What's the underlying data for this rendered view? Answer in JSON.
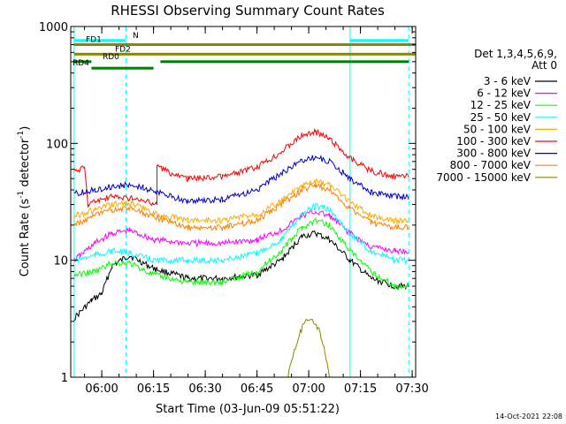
{
  "chart_data": {
    "type": "line",
    "title": "RHESSI Observing Summary Count Rates",
    "xlabel": "Start Time (03-Jun-09 05:51:22)",
    "ylabel_parts": [
      "Count Rate (s",
      "-1",
      " detector",
      "-1",
      ")"
    ],
    "ylabel": "Count Rate (s^-1 detector^-1)",
    "yscale": "log",
    "ylim": [
      1,
      1000
    ],
    "xlim": [
      "05:51",
      "07:31"
    ],
    "x_ticks": [
      "06:00",
      "06:15",
      "06:30",
      "06:45",
      "07:00",
      "07:15",
      "07:30"
    ],
    "y_ticks": [
      "1",
      "10",
      "100",
      "1000"
    ],
    "footer_date": "14-Oct-2021 22:08",
    "legend_title_line1": "Det 1,3,4,5,6,9,",
    "legend_title_line2": "Att 0",
    "series": [
      {
        "name": "3 - 6 keV",
        "color": "#000000",
        "points": [
          [
            "05:52",
            3.2
          ],
          [
            "05:57",
            4.5
          ],
          [
            "06:00",
            5.2
          ],
          [
            "06:03",
            9
          ],
          [
            "06:08",
            11
          ],
          [
            "06:15",
            8.5
          ],
          [
            "06:25",
            7
          ],
          [
            "06:35",
            7
          ],
          [
            "06:45",
            7.5
          ],
          [
            "06:52",
            10
          ],
          [
            "06:58",
            16
          ],
          [
            "07:02",
            17
          ],
          [
            "07:06",
            15
          ],
          [
            "07:12",
            10
          ],
          [
            "07:18",
            7
          ],
          [
            "07:25",
            6
          ],
          [
            "07:29",
            6
          ]
        ]
      },
      {
        "name": "6 - 12 keV",
        "color": "#ff00ff",
        "points": [
          [
            "05:52",
            10
          ],
          [
            "05:58",
            14
          ],
          [
            "06:03",
            17
          ],
          [
            "06:08",
            18
          ],
          [
            "06:15",
            15
          ],
          [
            "06:25",
            14
          ],
          [
            "06:35",
            14
          ],
          [
            "06:45",
            15
          ],
          [
            "06:52",
            18
          ],
          [
            "06:58",
            24
          ],
          [
            "07:02",
            26
          ],
          [
            "07:06",
            24
          ],
          [
            "07:12",
            17
          ],
          [
            "07:18",
            13
          ],
          [
            "07:25",
            12
          ],
          [
            "07:29",
            12
          ]
        ]
      },
      {
        "name": "12 - 25 keV",
        "color": "#00ff00",
        "points": [
          [
            "05:52",
            7.5
          ],
          [
            "05:58",
            8
          ],
          [
            "06:03",
            9.5
          ],
          [
            "06:08",
            9.5
          ],
          [
            "06:15",
            7.5
          ],
          [
            "06:25",
            6.5
          ],
          [
            "06:35",
            6.5
          ],
          [
            "06:45",
            8
          ],
          [
            "06:52",
            12
          ],
          [
            "06:58",
            19
          ],
          [
            "07:02",
            22
          ],
          [
            "07:06",
            20
          ],
          [
            "07:12",
            12
          ],
          [
            "07:18",
            8
          ],
          [
            "07:25",
            6
          ],
          [
            "07:29",
            6
          ]
        ]
      },
      {
        "name": "25 - 50 keV",
        "color": "#00ffff",
        "points": [
          [
            "05:52",
            10
          ],
          [
            "05:58",
            11
          ],
          [
            "06:03",
            12
          ],
          [
            "06:08",
            11.5
          ],
          [
            "06:15",
            10
          ],
          [
            "06:25",
            10
          ],
          [
            "06:35",
            10
          ],
          [
            "06:45",
            11.5
          ],
          [
            "06:52",
            15
          ],
          [
            "06:58",
            25
          ],
          [
            "07:02",
            29
          ],
          [
            "07:06",
            27
          ],
          [
            "07:12",
            17
          ],
          [
            "07:18",
            12
          ],
          [
            "07:25",
            10
          ],
          [
            "07:29",
            10
          ]
        ]
      },
      {
        "name": "50 - 100 keV",
        "color": "#ffaa00",
        "points": [
          [
            "05:52",
            24
          ],
          [
            "05:58",
            27
          ],
          [
            "06:03",
            30
          ],
          [
            "06:08",
            31
          ],
          [
            "06:12",
            28
          ],
          [
            "06:15",
            25
          ],
          [
            "06:25",
            22
          ],
          [
            "06:35",
            22
          ],
          [
            "06:45",
            25
          ],
          [
            "06:52",
            32
          ],
          [
            "06:58",
            43
          ],
          [
            "07:02",
            47
          ],
          [
            "07:06",
            44
          ],
          [
            "07:12",
            32
          ],
          [
            "07:18",
            24
          ],
          [
            "07:25",
            22
          ],
          [
            "07:29",
            22
          ]
        ]
      },
      {
        "name": "100 - 300 keV",
        "color": "#ff0000",
        "points": [
          [
            "05:52",
            58
          ],
          [
            "05:55",
            62
          ],
          [
            "05:56",
            30
          ],
          [
            "05:58",
            32
          ],
          [
            "06:03",
            35
          ],
          [
            "06:08",
            34
          ],
          [
            "06:12",
            32
          ],
          [
            "06:16",
            30
          ],
          [
            "06:16",
            65
          ],
          [
            "06:20",
            55
          ],
          [
            "06:25",
            50
          ],
          [
            "06:35",
            52
          ],
          [
            "06:45",
            62
          ],
          [
            "06:52",
            85
          ],
          [
            "06:58",
            118
          ],
          [
            "07:02",
            125
          ],
          [
            "07:06",
            110
          ],
          [
            "07:12",
            75
          ],
          [
            "07:18",
            58
          ],
          [
            "07:25",
            52
          ],
          [
            "07:29",
            52
          ]
        ]
      },
      {
        "name": "300 - 800 keV",
        "color": "#0000cc",
        "points": [
          [
            "05:52",
            37
          ],
          [
            "05:58",
            40
          ],
          [
            "06:03",
            43
          ],
          [
            "06:08",
            44
          ],
          [
            "06:12",
            42
          ],
          [
            "06:16",
            38
          ],
          [
            "06:25",
            32
          ],
          [
            "06:35",
            33
          ],
          [
            "06:45",
            40
          ],
          [
            "06:52",
            55
          ],
          [
            "06:58",
            72
          ],
          [
            "07:02",
            77
          ],
          [
            "07:06",
            70
          ],
          [
            "07:12",
            50
          ],
          [
            "07:18",
            38
          ],
          [
            "07:25",
            35
          ],
          [
            "07:29",
            35
          ]
        ]
      },
      {
        "name": "800 - 7000 keV",
        "color": "#ff7f00",
        "points": [
          [
            "05:52",
            20
          ],
          [
            "05:58",
            24
          ],
          [
            "06:03",
            27
          ],
          [
            "06:08",
            28
          ],
          [
            "06:12",
            25
          ],
          [
            "06:16",
            23
          ],
          [
            "06:25",
            19
          ],
          [
            "06:35",
            19
          ],
          [
            "06:45",
            22
          ],
          [
            "06:52",
            30
          ],
          [
            "06:58",
            40
          ],
          [
            "07:02",
            44
          ],
          [
            "07:06",
            40
          ],
          [
            "07:12",
            28
          ],
          [
            "07:18",
            21
          ],
          [
            "07:25",
            19
          ],
          [
            "07:29",
            19
          ]
        ]
      },
      {
        "name": "7000 - 15000 keV",
        "color": "#888800",
        "points": [
          [
            "06:54",
            1.02
          ],
          [
            "06:55",
            1.4
          ],
          [
            "06:57",
            2.2
          ],
          [
            "06:59",
            3.0
          ],
          [
            "07:01",
            3.0
          ],
          [
            "07:03",
            2.5
          ],
          [
            "07:05",
            1.5
          ],
          [
            "07:06",
            1.02
          ]
        ]
      }
    ],
    "status_bars": [
      {
        "name": "N",
        "color": "#00ffff",
        "y": 760,
        "segments": [
          [
            "05:52",
            "06:07"
          ],
          [
            "07:12",
            "07:29"
          ]
        ]
      },
      {
        "name": "FD1",
        "color": "#888800",
        "y": 700,
        "segments": [
          [
            "05:52",
            "07:31"
          ]
        ]
      },
      {
        "name": "FD2",
        "color": "#888800",
        "y": 580,
        "segments": [
          [
            "05:52",
            "07:31"
          ]
        ]
      },
      {
        "name": "RD0",
        "color": "#008000",
        "y": 500,
        "segments": [
          [
            "05:52",
            "05:57"
          ],
          [
            "06:17",
            "07:29"
          ]
        ]
      },
      {
        "name": "RD4",
        "color": "#008000",
        "y": 440,
        "segments": [
          [
            "05:57",
            "06:15"
          ]
        ]
      }
    ],
    "vertical_lines": [
      {
        "time": "05:52",
        "style": "solid",
        "color": "#00ffff"
      },
      {
        "time": "06:07",
        "style": "dashed",
        "color": "#00ffff"
      },
      {
        "time": "07:12",
        "style": "solid",
        "color": "#00ffff"
      },
      {
        "time": "07:29",
        "style": "dashed",
        "color": "#00ffff"
      }
    ],
    "grid": false,
    "legend_placement": "right"
  }
}
